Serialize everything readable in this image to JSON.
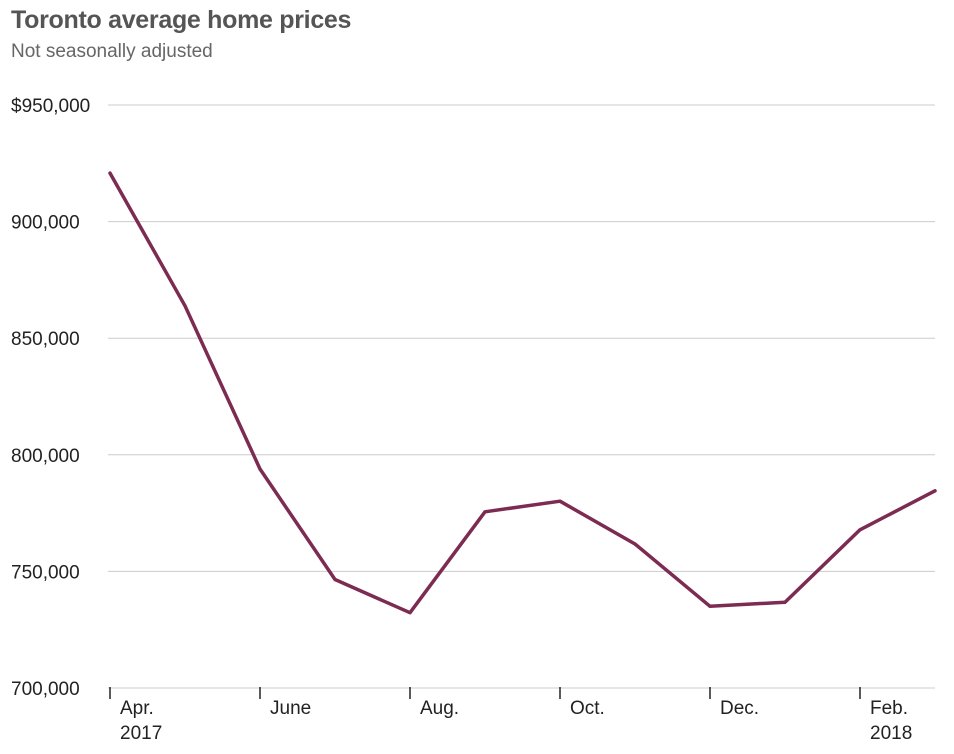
{
  "chart_data": {
    "type": "line",
    "title": "Toronto average home prices",
    "subtitle": "Not seasonally adjusted",
    "xlabel": "",
    "ylabel": "",
    "x": [
      "Apr. 2017",
      "May 2017",
      "June 2017",
      "July 2017",
      "Aug. 2017",
      "Sep. 2017",
      "Oct. 2017",
      "Nov. 2017",
      "Dec. 2017",
      "Jan. 2018",
      "Feb. 2018",
      "Mar. 2018"
    ],
    "series": [
      {
        "values": [
          920791,
          863910,
          793915,
          746546,
          732292,
          775546,
          780104,
          761757,
          735021,
          736783,
          767818,
          784558
        ]
      }
    ],
    "ylim": [
      700000,
      950000
    ],
    "yticks": [
      950000,
      900000,
      850000,
      800000,
      750000,
      700000
    ],
    "ytick_labels": [
      "$950,000",
      "900,000",
      "850,000",
      "800,000",
      "750,000",
      "700,000"
    ],
    "xticks": [
      {
        "month": "Apr.",
        "year": "2017"
      },
      {
        "month": "June",
        "year": ""
      },
      {
        "month": "Aug.",
        "year": ""
      },
      {
        "month": "Oct.",
        "year": ""
      },
      {
        "month": "Dec.",
        "year": ""
      },
      {
        "month": "Feb.",
        "year": "2018"
      }
    ],
    "xtick_indices": [
      0,
      2,
      4,
      6,
      8,
      10
    ],
    "line_color": "#7c2b52",
    "grid_color": "#cccccc",
    "grid": true
  }
}
